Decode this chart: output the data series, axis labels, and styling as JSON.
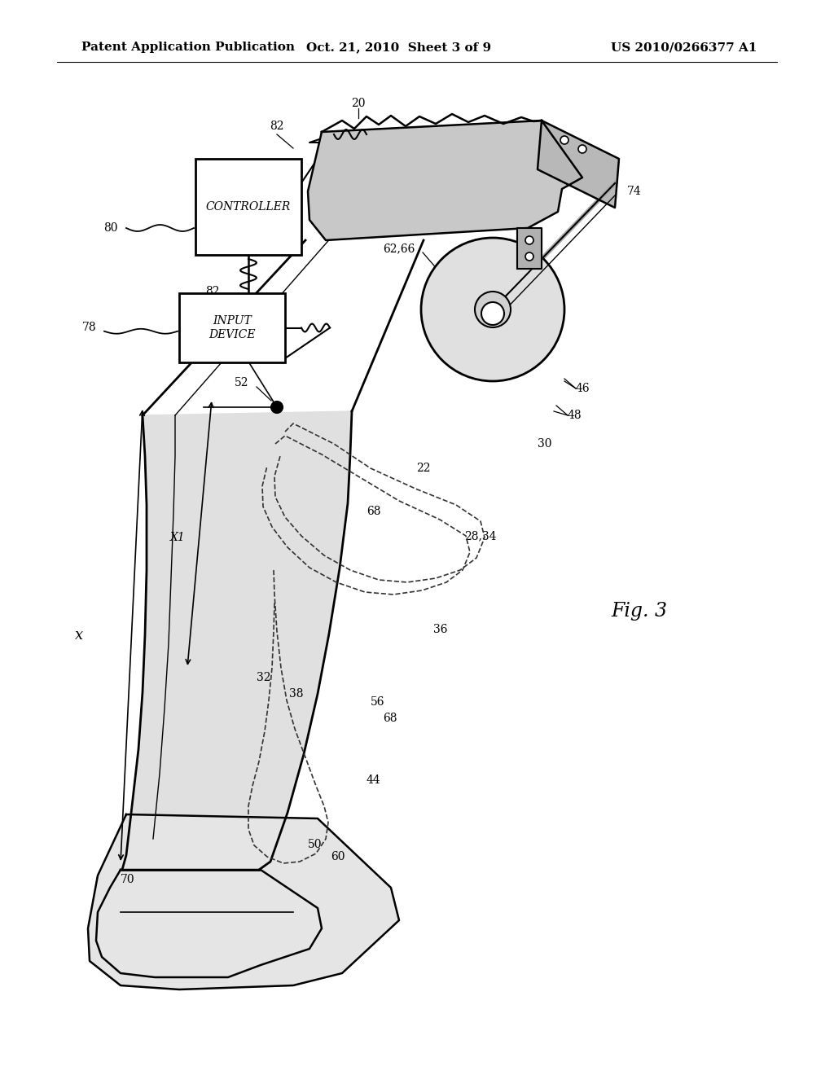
{
  "bg": "#ffffff",
  "header_left": "Patent Application Publication",
  "header_mid": "Oct. 21, 2010  Sheet 3 of 9",
  "header_right": "US 2010/0266377 A1",
  "fig_label": "Fig. 3",
  "controller_text": "CONTROLLER",
  "input_text": "INPUT\nDEVICE",
  "ref_labels": {
    "82a": [
      340,
      165,
      "82"
    ],
    "82b": [
      252,
      358,
      "82"
    ],
    "80": [
      145,
      280,
      "80"
    ],
    "78": [
      118,
      402,
      "78"
    ],
    "20": [
      440,
      137,
      "20"
    ],
    "74": [
      730,
      245,
      "74"
    ],
    "62_66": [
      490,
      310,
      "62,66"
    ],
    "52": [
      305,
      470,
      "52"
    ],
    "46": [
      685,
      490,
      "46"
    ],
    "48": [
      680,
      520,
      "48"
    ],
    "30": [
      650,
      550,
      "30"
    ],
    "22": [
      520,
      575,
      "22"
    ],
    "68a": [
      450,
      630,
      "68"
    ],
    "28_34": [
      570,
      660,
      "28,34"
    ],
    "36": [
      530,
      775,
      "36"
    ],
    "32": [
      335,
      830,
      "32"
    ],
    "38": [
      355,
      850,
      "38"
    ],
    "56": [
      455,
      860,
      "56"
    ],
    "68b": [
      470,
      880,
      "68"
    ],
    "44": [
      455,
      960,
      "44"
    ],
    "50": [
      390,
      1035,
      "50"
    ],
    "60": [
      415,
      1050,
      "60"
    ],
    "70": [
      148,
      1075,
      "70"
    ],
    "x": [
      97,
      750,
      "x"
    ],
    "x1": [
      228,
      680,
      "X1"
    ]
  }
}
